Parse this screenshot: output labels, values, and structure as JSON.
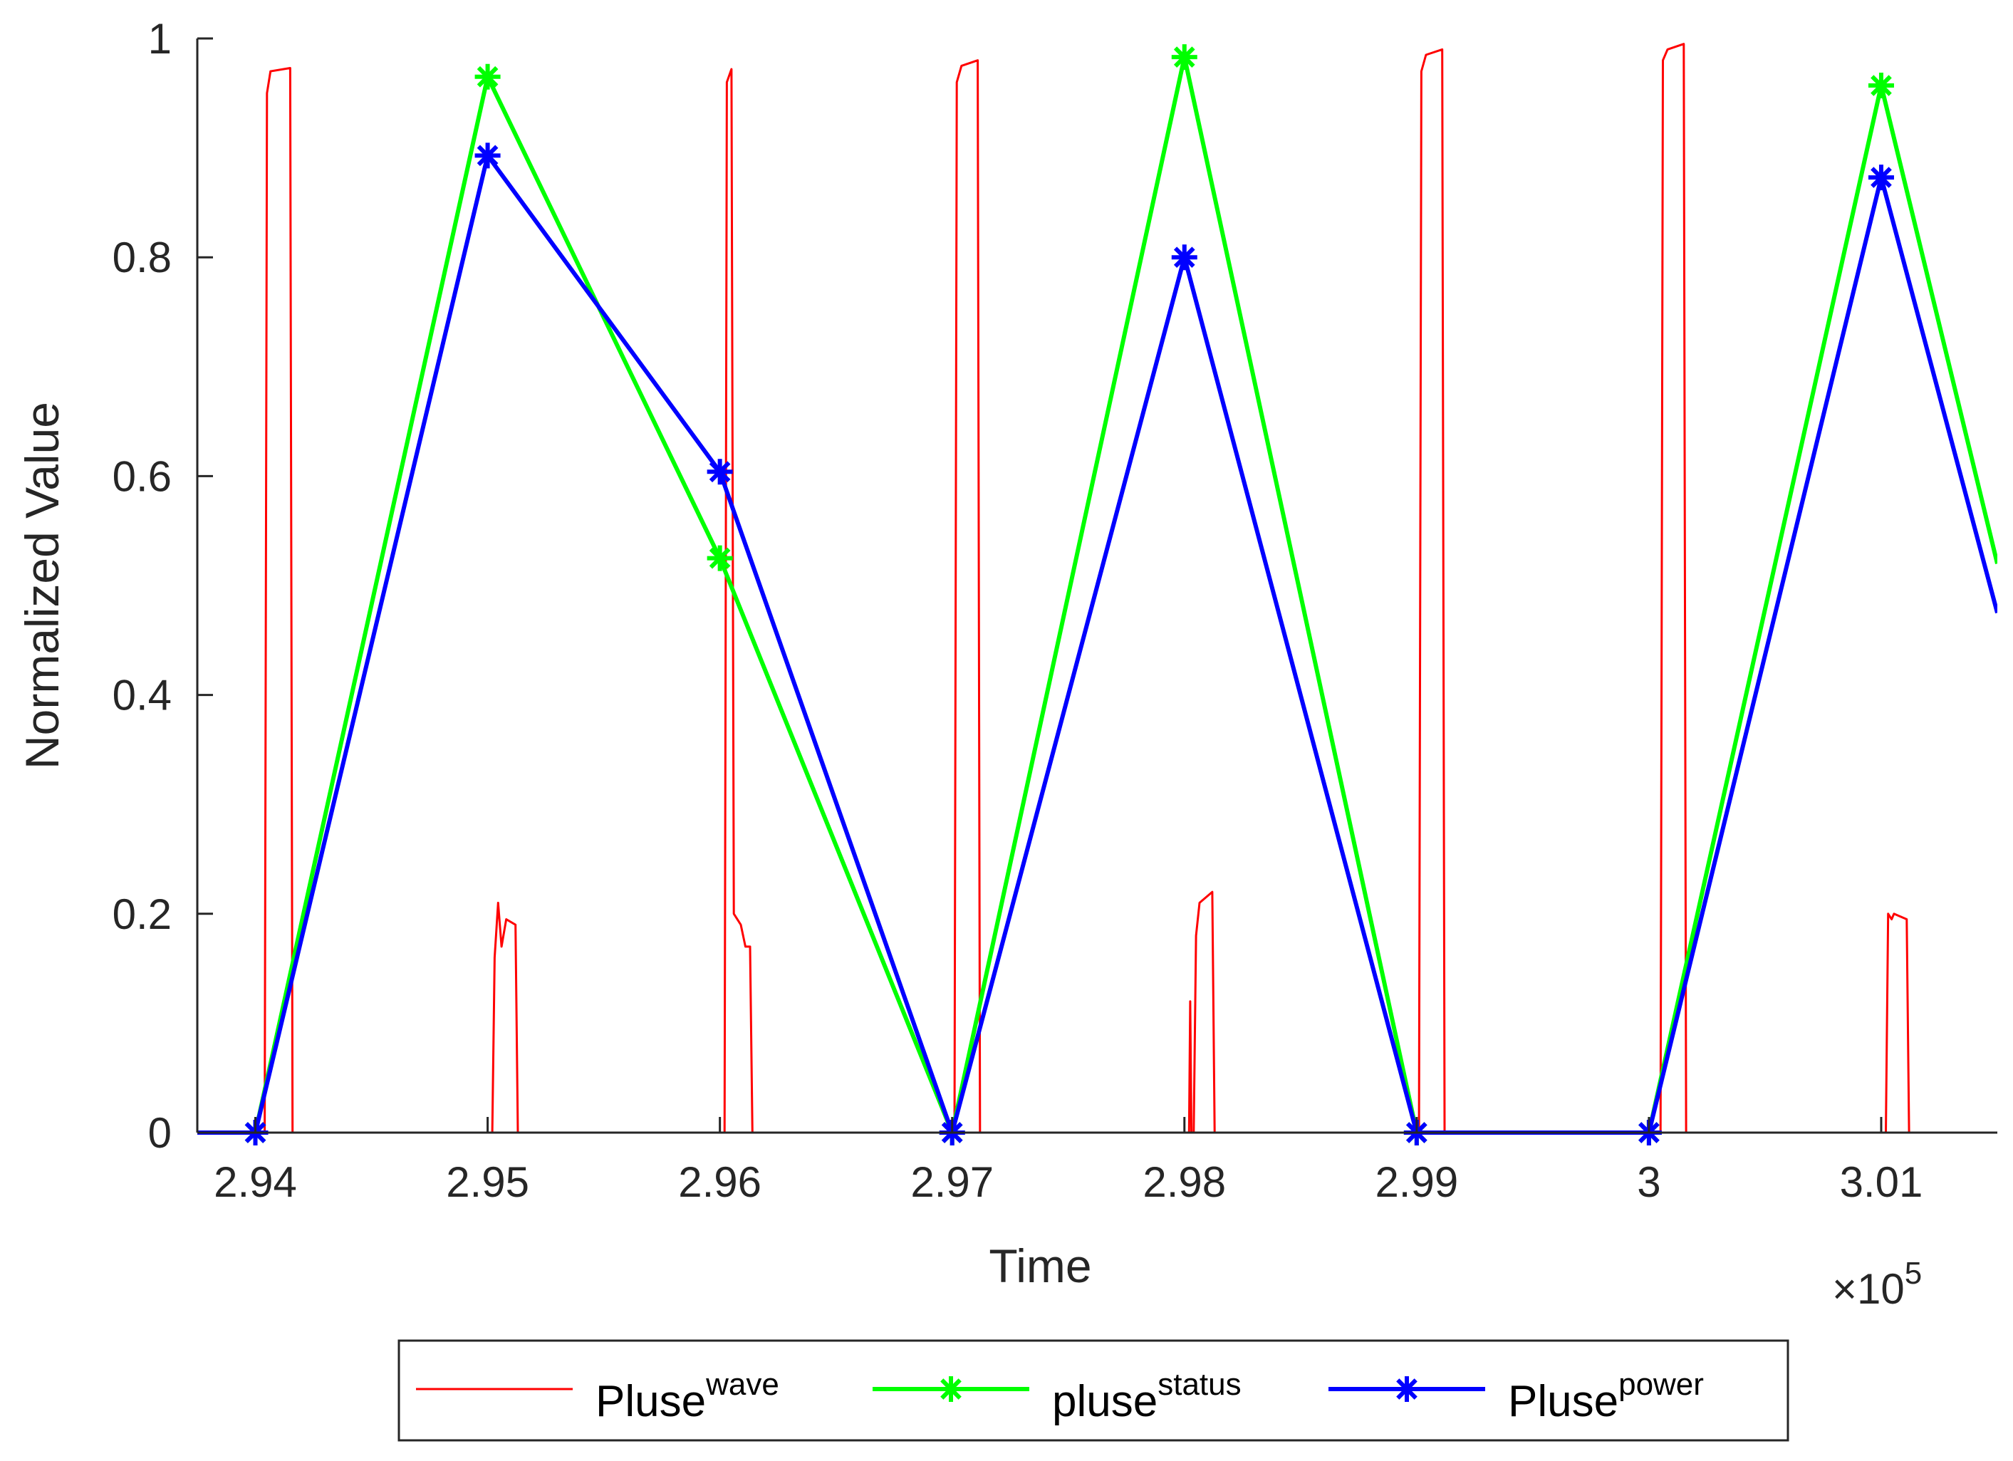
{
  "chart_data": {
    "type": "line",
    "title": "",
    "xlabel": "Time",
    "ylabel": "Normalized Value",
    "x_exponent_base": "×10",
    "x_exponent_power": "5",
    "xlim": [
      293750,
      301500
    ],
    "ylim": [
      0,
      1
    ],
    "xticks": [
      294000,
      295000,
      296000,
      297000,
      298000,
      299000,
      300000,
      301000
    ],
    "xtick_labels": [
      "2.94",
      "2.95",
      "2.96",
      "2.97",
      "2.98",
      "2.99",
      "3",
      "3.01"
    ],
    "yticks": [
      0,
      0.2,
      0.4,
      0.6,
      0.8,
      1
    ],
    "ytick_labels": [
      "0",
      "0.2",
      "0.4",
      "0.6",
      "0.8",
      "1"
    ],
    "legend": "bottom-outside",
    "series": [
      {
        "name_base": "Pluse",
        "name_sup": "wave",
        "color": "#ff0000",
        "marker": "none",
        "points": [
          [
            293750,
            0
          ],
          [
            294040,
            0
          ],
          [
            294050,
            0.95
          ],
          [
            294065,
            0.97
          ],
          [
            294150,
            0.973
          ],
          [
            294160,
            0
          ],
          [
            295020,
            0
          ],
          [
            295030,
            0.16
          ],
          [
            295045,
            0.21
          ],
          [
            295060,
            0.17
          ],
          [
            295080,
            0.195
          ],
          [
            295120,
            0.19
          ],
          [
            295130,
            0
          ],
          [
            296020,
            0
          ],
          [
            296030,
            0.96
          ],
          [
            296050,
            0.972
          ],
          [
            296060,
            0.2
          ],
          [
            296090,
            0.19
          ],
          [
            296110,
            0.17
          ],
          [
            296130,
            0.17
          ],
          [
            296140,
            0
          ],
          [
            297010,
            0
          ],
          [
            297020,
            0.96
          ],
          [
            297040,
            0.975
          ],
          [
            297110,
            0.98
          ],
          [
            297120,
            0
          ],
          [
            298020,
            0
          ],
          [
            298025,
            0.12
          ],
          [
            298030,
            0
          ],
          [
            298040,
            0
          ],
          [
            298050,
            0.18
          ],
          [
            298065,
            0.21
          ],
          [
            298120,
            0.22
          ],
          [
            298130,
            0
          ],
          [
            299010,
            0
          ],
          [
            299020,
            0.97
          ],
          [
            299040,
            0.985
          ],
          [
            299110,
            0.99
          ],
          [
            299120,
            0
          ],
          [
            300050,
            0
          ],
          [
            300060,
            0.98
          ],
          [
            300080,
            0.99
          ],
          [
            300150,
            0.995
          ],
          [
            300160,
            0
          ],
          [
            301020,
            0
          ],
          [
            301030,
            0.2
          ],
          [
            301045,
            0.195
          ],
          [
            301055,
            0.2
          ],
          [
            301110,
            0.195
          ],
          [
            301120,
            0
          ],
          [
            301500,
            0
          ]
        ]
      },
      {
        "name_base": "pluse",
        "name_sup": "status",
        "color": "#00ff00",
        "marker": "asterisk",
        "line_start": [
          293750,
          0
        ],
        "line_end": [
          301500,
          0.52
        ],
        "points": [
          [
            294000,
            0
          ],
          [
            295000,
            0.965
          ],
          [
            296000,
            0.525
          ],
          [
            297000,
            0
          ],
          [
            298000,
            0.983
          ],
          [
            299000,
            0
          ],
          [
            300000,
            0
          ],
          [
            301000,
            0.957
          ]
        ]
      },
      {
        "name_base": "Pluse",
        "name_sup": "power",
        "color": "#0000ff",
        "marker": "asterisk",
        "line_start": [
          293750,
          0
        ],
        "line_end": [
          301500,
          0.475
        ],
        "points": [
          [
            294000,
            0
          ],
          [
            295000,
            0.893
          ],
          [
            296000,
            0.604
          ],
          [
            297000,
            0
          ],
          [
            298000,
            0.8
          ],
          [
            299000,
            0
          ],
          [
            300000,
            0
          ],
          [
            301000,
            0.873
          ]
        ]
      }
    ]
  }
}
